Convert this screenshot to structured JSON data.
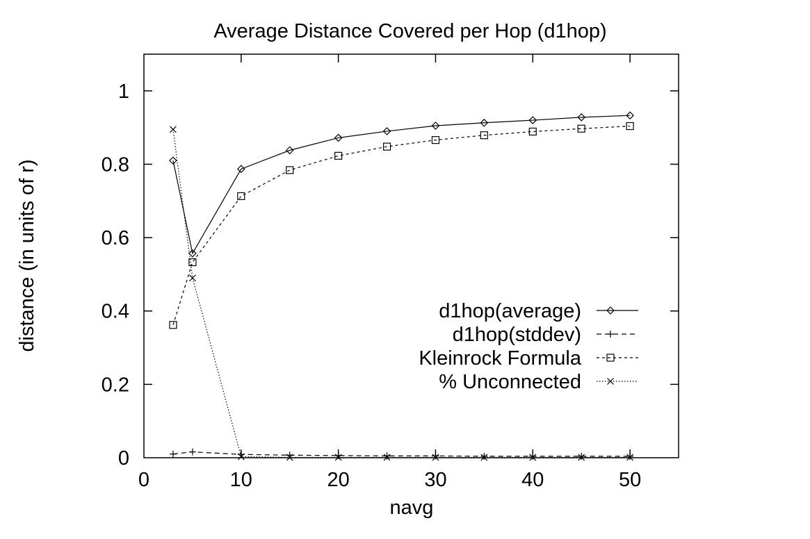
{
  "chart_data": {
    "type": "line",
    "title": "Average Distance Covered per Hop (d1hop)",
    "xlabel": "navg",
    "ylabel": "distance (in units of r)",
    "xlim": [
      0,
      55
    ],
    "ylim": [
      0,
      1.1
    ],
    "xticks": [
      0,
      10,
      20,
      30,
      40,
      50
    ],
    "yticks": [
      0,
      0.2,
      0.4,
      0.6,
      0.8,
      1
    ],
    "xtick_labels": [
      "0",
      "10",
      "20",
      "30",
      "40",
      "50"
    ],
    "ytick_labels": [
      "0",
      "0.2",
      "0.4",
      "0.6",
      "0.8",
      "1"
    ],
    "grid": false,
    "legend_position": "lower-right",
    "series": [
      {
        "name": "d1hop(average)",
        "marker": "diamond",
        "dash": "solid",
        "x": [
          3,
          5,
          10,
          15,
          20,
          25,
          30,
          35,
          40,
          45,
          50
        ],
        "y": [
          0.81,
          0.557,
          0.787,
          0.838,
          0.872,
          0.89,
          0.905,
          0.913,
          0.92,
          0.928,
          0.933
        ]
      },
      {
        "name": "d1hop(stddev)",
        "marker": "plus",
        "dash": "dashed",
        "x": [
          3,
          5,
          10,
          15,
          20,
          25,
          30,
          35,
          40,
          45,
          50
        ],
        "y": [
          0.01,
          0.016,
          0.009,
          0.007,
          0.006,
          0.005,
          0.005,
          0.004,
          0.004,
          0.004,
          0.004
        ]
      },
      {
        "name": "Kleinrock Formula",
        "marker": "square",
        "dash": "dotted-dashed",
        "x": [
          3,
          5,
          10,
          15,
          20,
          25,
          30,
          35,
          40,
          45,
          50
        ],
        "y": [
          0.362,
          0.533,
          0.713,
          0.784,
          0.823,
          0.848,
          0.866,
          0.879,
          0.889,
          0.897,
          0.904
        ]
      },
      {
        "name": "% Unconnected",
        "marker": "cross",
        "dash": "dotted",
        "x": [
          3,
          5,
          10,
          15,
          20,
          25,
          30,
          35,
          40,
          45,
          50
        ],
        "y": [
          0.895,
          0.49,
          0.003,
          0.001,
          0.001,
          0.001,
          0.001,
          0.001,
          0.001,
          0.001,
          0.001
        ]
      }
    ]
  }
}
